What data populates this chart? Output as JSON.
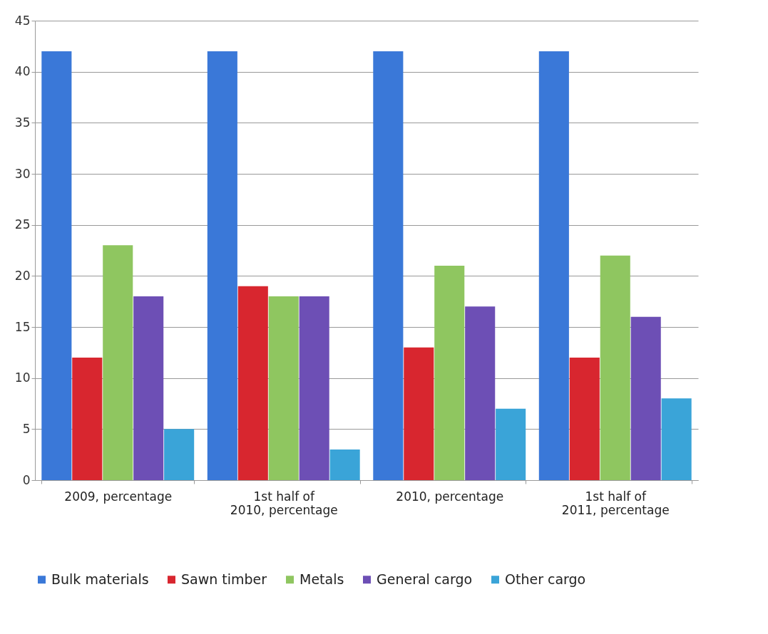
{
  "chart_data": {
    "type": "bar",
    "categories": [
      "2009, percentage",
      "1st half of 2010, percentage",
      "2010, percentage",
      "1st half of 2011, percentage"
    ],
    "series": [
      {
        "name": "Bulk materials",
        "color": "#3a78d8",
        "values": [
          42,
          42,
          42,
          42
        ]
      },
      {
        "name": "Sawn timber",
        "color": "#d8262f",
        "values": [
          12,
          19,
          13,
          12
        ]
      },
      {
        "name": "Metals",
        "color": "#8fc660",
        "values": [
          23,
          18,
          21,
          22
        ]
      },
      {
        "name": "General cargo",
        "color": "#6d4fb5",
        "values": [
          18,
          18,
          17,
          16
        ]
      },
      {
        "name": "Other cargo",
        "color": "#3aa4d8",
        "values": [
          5,
          3,
          7,
          8
        ]
      }
    ],
    "ylim": [
      0,
      45
    ],
    "yticks": [
      0,
      5,
      10,
      15,
      20,
      25,
      30,
      35,
      40,
      45
    ],
    "grid": "y",
    "legend": "bottom"
  }
}
